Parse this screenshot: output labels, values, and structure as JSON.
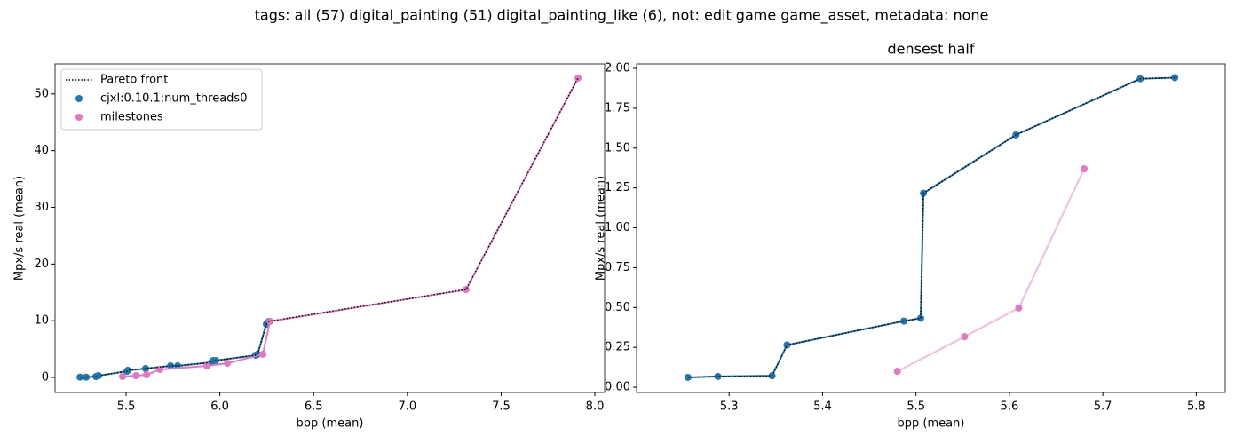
{
  "title": "tags: all (57) digital_painting (51) digital_painting_like (6), not: edit game game_asset, metadata: none",
  "chart_data": [
    {
      "type": "scatter",
      "xlabel": "bpp (mean)",
      "ylabel": "Mpx/s real (mean)",
      "xlim": [
        5.121,
        8.052
      ],
      "ylim": [
        -2.66,
        55.3
      ],
      "xticks": [
        5.5,
        {
          "value": 6,
          "label": "6.0"
        },
        6.5,
        {
          "value": 7,
          "label": "7.0"
        },
        7.5,
        {
          "value": 8,
          "label": "8.0"
        }
      ],
      "yticks": [
        0,
        10,
        20,
        30,
        40,
        50
      ],
      "legend": "upper left",
      "series": [
        {
          "name": "cjxl:0.10.1:num_threads0",
          "color": "#1f77b4",
          "marker": true,
          "linestyle": "solid",
          "x": [
            5.254,
            5.287,
            5.339,
            5.353,
            5.505,
            5.509,
            5.604,
            5.737,
            5.775,
            5.955,
            5.964,
            5.978,
            6.191,
            6.201,
            6.248,
            6.262
          ],
          "values": [
            0.05,
            0.05,
            0.16,
            0.31,
            1.1,
            1.25,
            1.57,
            2.04,
            2.04,
            2.66,
            2.98,
            2.98,
            3.92,
            4.08,
            9.4,
            9.9
          ]
        },
        {
          "name": "milestones",
          "color": "#e377c2",
          "marker": true,
          "linestyle": "solid",
          "x": [
            5.481,
            5.552,
            5.609,
            5.68,
            5.931,
            6.04,
            6.229,
            6.267,
            7.313,
            7.91
          ],
          "values": [
            0.16,
            0.31,
            0.47,
            1.41,
            2.04,
            2.5,
            4.08,
            9.87,
            15.5,
            52.8
          ]
        },
        {
          "name": "Pareto front",
          "color": "#000000",
          "marker": false,
          "linestyle": "dotted",
          "x": [
            5.254,
            5.287,
            5.339,
            5.353,
            5.505,
            5.509,
            5.604,
            5.737,
            5.775,
            5.955,
            5.964,
            5.978,
            6.191,
            6.201,
            6.248,
            6.262,
            7.313,
            7.91
          ],
          "values": [
            0.05,
            0.05,
            0.16,
            0.31,
            1.1,
            1.25,
            1.57,
            2.04,
            2.04,
            2.66,
            2.98,
            2.98,
            3.92,
            4.08,
            9.4,
            9.9,
            15.5,
            52.8
          ]
        }
      ]
    },
    {
      "type": "scatter",
      "title": "densest half",
      "xlabel": "bpp (mean)",
      "ylabel": "Mpx/s real (mean)",
      "xlim": [
        5.201,
        5.831
      ],
      "ylim": [
        -0.033,
        2.028
      ],
      "xticks": [
        5.3,
        5.4,
        5.5,
        5.6,
        5.7,
        5.8
      ],
      "yticks": [
        {
          "value": 0,
          "label": "0.00"
        },
        0.25,
        {
          "value": 0.5,
          "label": "0.50"
        },
        0.75,
        {
          "value": 1,
          "label": "1.00"
        },
        1.25,
        {
          "value": 1.5,
          "label": "1.50"
        },
        1.75,
        {
          "value": 2,
          "label": "2.00"
        }
      ],
      "series": [
        {
          "color": "#1f77b4",
          "marker": true,
          "linestyle": "solid",
          "x": [
            5.256,
            5.288,
            5.346,
            5.362,
            5.487,
            5.505,
            5.508,
            5.607,
            5.74,
            5.777
          ],
          "values": [
            0.062,
            0.068,
            0.072,
            0.265,
            0.415,
            0.433,
            1.217,
            1.583,
            1.935,
            1.942
          ]
        },
        {
          "color": "#e377c2",
          "marker": true,
          "linestyle": "solid",
          "line_opacity": 0.5,
          "x": [
            5.48,
            5.552,
            5.61,
            5.68
          ],
          "values": [
            0.1,
            0.317,
            0.497,
            1.37
          ]
        },
        {
          "color": "#000000",
          "marker": false,
          "linestyle": "dotted",
          "x": [
            5.256,
            5.288,
            5.346,
            5.362,
            5.487,
            5.505,
            5.508,
            5.607,
            5.74,
            5.777
          ],
          "values": [
            0.062,
            0.068,
            0.072,
            0.265,
            0.415,
            0.433,
            1.217,
            1.583,
            1.935,
            1.942
          ]
        }
      ]
    }
  ]
}
